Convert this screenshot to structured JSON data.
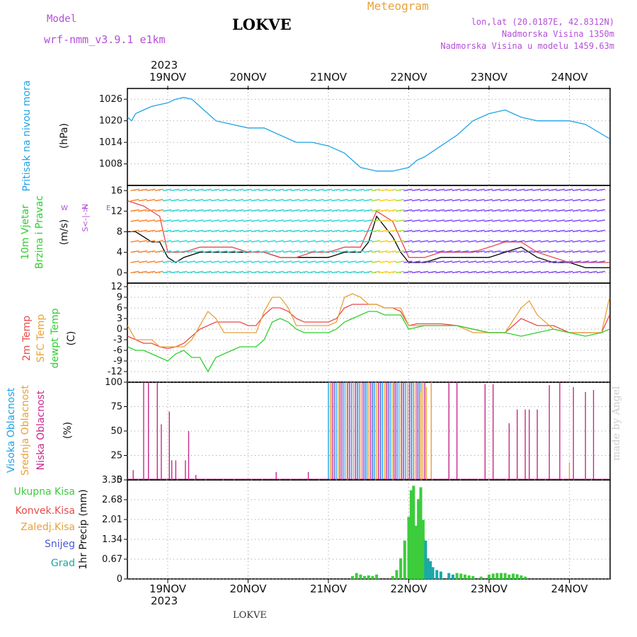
{
  "header": {
    "model_label": "Model",
    "model_name": "wrf-nmm_v3.9.1 e1km",
    "location": "LOKVE",
    "meteogram": "Meteogram",
    "lonlat": "lon,lat (20.0187E, 42.8312N)",
    "altitude": "Nadmorska Visina 1350m",
    "model_altitude": "Nadmorska Visina u modelu 1459.63m"
  },
  "year_label": "2023",
  "footer_location": "LOKVE",
  "watermark": "made by Angel",
  "colors": {
    "pressure": "#1fa3e6",
    "temp2m": "#e94a4a",
    "sfc": "#e8a23a",
    "dewpt": "#2fcf2f",
    "purple": "#b44fd6",
    "green_bar": "#3ccc3c",
    "blue_bar": "#4a58d8",
    "teal_bar": "#1aa8a8",
    "cloud_magenta": "#c8288a"
  },
  "chart_data": [
    {
      "type": "line",
      "panel": "pressure",
      "ylabel_series": "Pritisak na nivou mora",
      "unit": "(hPa)",
      "x_categories": [
        "19NOV",
        "20NOV",
        "21NOV",
        "22NOV",
        "23NOV",
        "24NOV"
      ],
      "ylim": [
        1002,
        1029
      ],
      "yticks": [
        1008,
        1014,
        1020,
        1026
      ],
      "grid": true,
      "series": [
        {
          "name": "Pritisak na nivou mora",
          "x": [
            -0.5,
            -0.45,
            -0.4,
            -0.3,
            -0.2,
            -0.1,
            0,
            0.1,
            0.2,
            0.3,
            0.4,
            0.5,
            0.6,
            0.8,
            1.0,
            1.2,
            1.4,
            1.6,
            1.8,
            2.0,
            2.2,
            2.4,
            2.6,
            2.8,
            3.0,
            3.1,
            3.2,
            3.4,
            3.6,
            3.8,
            4.0,
            4.2,
            4.4,
            4.6,
            4.8,
            5.0,
            5.2,
            5.5
          ],
          "y": [
            1021,
            1020,
            1022,
            1023,
            1024,
            1024.5,
            1025,
            1026,
            1026.5,
            1026,
            1024,
            1022,
            1020,
            1019,
            1018,
            1018,
            1016,
            1014,
            1014,
            1013,
            1011,
            1007,
            1006,
            1006,
            1007,
            1009,
            1010,
            1013,
            1016,
            1020,
            1022,
            1023,
            1021,
            1020,
            1020,
            1020,
            1019,
            1015
          ]
        }
      ]
    },
    {
      "type": "line",
      "panel": "wind",
      "ylabel_series": [
        "10m Vjetar",
        "Brzina i Pravac"
      ],
      "unit": "(m/s)",
      "direction_legend": [
        "N",
        "<-|->",
        "S",
        "W",
        "E"
      ],
      "ylim": [
        -2,
        17
      ],
      "yticks": [
        0,
        4,
        8,
        12,
        16
      ],
      "grid": true,
      "series": [
        {
          "name": "speed",
          "x": [
            -0.5,
            -0.4,
            -0.3,
            -0.2,
            -0.1,
            0,
            0.1,
            0.2,
            0.4,
            0.6,
            0.8,
            1.0,
            1.2,
            1.4,
            1.6,
            1.8,
            2.0,
            2.2,
            2.4,
            2.5,
            2.6,
            2.7,
            2.8,
            2.9,
            3.0,
            3.2,
            3.4,
            3.6,
            3.8,
            4.0,
            4.2,
            4.4,
            4.6,
            4.8,
            5.0,
            5.2,
            5.4,
            5.5
          ],
          "y": [
            8,
            8,
            7,
            6,
            6,
            3,
            2,
            3,
            4,
            4,
            4,
            4,
            4,
            3,
            3,
            3,
            3,
            4,
            4,
            6,
            11,
            9,
            7,
            4,
            2,
            2,
            3,
            3,
            3,
            3,
            4,
            5,
            3,
            2,
            2,
            1,
            1,
            1
          ]
        },
        {
          "name": "gust",
          "x": [
            -0.5,
            -0.3,
            -0.1,
            0,
            0.2,
            0.4,
            0.6,
            0.8,
            1.0,
            1.2,
            1.4,
            1.6,
            1.8,
            2.0,
            2.2,
            2.4,
            2.6,
            2.8,
            3.0,
            3.2,
            3.4,
            3.6,
            3.8,
            4.0,
            4.2,
            4.4,
            4.6,
            4.8,
            5.0,
            5.5
          ],
          "y": [
            14,
            13,
            11,
            4,
            4,
            5,
            5,
            5,
            4,
            4,
            3,
            3,
            4,
            4,
            5,
            5,
            12,
            10,
            3,
            3,
            4,
            4,
            4,
            5,
            6,
            6,
            4,
            3,
            2,
            2
          ]
        }
      ]
    },
    {
      "type": "line",
      "panel": "temperature",
      "ylabel_series": [
        "2m Temp",
        "SFC Temp",
        "dewpt Temp"
      ],
      "unit": "(C)",
      "ylim": [
        -15,
        13
      ],
      "yticks": [
        -12,
        -9,
        -6,
        -3,
        0,
        3,
        6,
        9,
        12
      ],
      "grid": true,
      "series": [
        {
          "name": "2m Temp",
          "x": [
            -0.5,
            -0.4,
            -0.3,
            -0.2,
            -0.1,
            0,
            0.1,
            0.2,
            0.3,
            0.4,
            0.5,
            0.6,
            0.7,
            0.8,
            0.9,
            1.0,
            1.1,
            1.2,
            1.3,
            1.4,
            1.5,
            1.6,
            1.7,
            1.8,
            1.9,
            2.0,
            2.1,
            2.2,
            2.3,
            2.4,
            2.5,
            2.6,
            2.7,
            2.8,
            2.9,
            3.0,
            3.1,
            3.2,
            3.4,
            3.6,
            3.8,
            4.0,
            4.2,
            4.4,
            4.6,
            4.8,
            5.0,
            5.2,
            5.4,
            5.5
          ],
          "y": [
            -2,
            -3,
            -4,
            -4,
            -5,
            -5.5,
            -5,
            -4,
            -2,
            0,
            1,
            2,
            2,
            2,
            2,
            1,
            1,
            4,
            6,
            6,
            5,
            3,
            2,
            2,
            2,
            2,
            3,
            6,
            7,
            7,
            7,
            7,
            6,
            6,
            5,
            1,
            1.5,
            1.5,
            1.5,
            1,
            0,
            -1,
            -1,
            3,
            1,
            1,
            -1,
            -1,
            -1,
            4
          ]
        },
        {
          "name": "SFC Temp",
          "x": [
            -0.5,
            -0.4,
            -0.3,
            -0.2,
            -0.1,
            0,
            0.1,
            0.2,
            0.3,
            0.4,
            0.5,
            0.6,
            0.7,
            0.8,
            0.9,
            1.0,
            1.1,
            1.2,
            1.3,
            1.4,
            1.5,
            1.6,
            1.7,
            1.8,
            1.9,
            2.0,
            2.1,
            2.2,
            2.3,
            2.4,
            2.5,
            2.6,
            2.7,
            2.8,
            2.9,
            3.0,
            3.1,
            3.2,
            3.4,
            3.6,
            3.8,
            4.0,
            4.2,
            4.4,
            4.5,
            4.6,
            4.8,
            5.0,
            5.2,
            5.4,
            5.5
          ],
          "y": [
            1,
            -3,
            -3,
            -3,
            -5,
            -5,
            -5,
            -5,
            -3,
            1,
            5,
            3,
            -1,
            -1,
            -1,
            -1,
            -1,
            5,
            9,
            9,
            6,
            1,
            1,
            1,
            1,
            1,
            2,
            9,
            10,
            9,
            7,
            7,
            6,
            6,
            6,
            1,
            1,
            1,
            1,
            1,
            -1,
            -1,
            -1,
            6,
            8,
            4,
            0,
            -1,
            -1,
            -1,
            9
          ]
        },
        {
          "name": "dewpt Temp",
          "x": [
            -0.5,
            -0.4,
            -0.3,
            -0.2,
            -0.1,
            0,
            0.1,
            0.2,
            0.3,
            0.4,
            0.5,
            0.6,
            0.7,
            0.8,
            0.9,
            1.0,
            1.1,
            1.2,
            1.3,
            1.4,
            1.5,
            1.6,
            1.7,
            1.8,
            1.9,
            2.0,
            2.1,
            2.2,
            2.3,
            2.4,
            2.5,
            2.6,
            2.7,
            2.8,
            2.9,
            3.0,
            3.2,
            3.4,
            3.6,
            3.8,
            4.0,
            4.2,
            4.4,
            4.6,
            4.8,
            5.0,
            5.2,
            5.4,
            5.5
          ],
          "y": [
            -5,
            -6,
            -6,
            -7,
            -8,
            -9,
            -7,
            -6,
            -8,
            -8,
            -12,
            -8,
            -7,
            -6,
            -5,
            -5,
            -5,
            -3,
            2,
            3,
            2,
            0,
            -1,
            -1,
            -1,
            -1,
            0,
            2,
            3,
            4,
            5,
            5,
            4,
            4,
            4,
            0,
            1,
            1,
            1,
            0,
            -1,
            -1,
            -2,
            -1,
            0,
            -1,
            -2,
            -1,
            0
          ]
        }
      ]
    },
    {
      "type": "bar",
      "panel": "clouds",
      "ylabel_series": [
        "Visoka Oblacnost",
        "Srednja Oblacnost",
        "Niska Oblacnost"
      ],
      "unit": "(%)",
      "ylim": [
        0,
        100
      ],
      "yticks": [
        0,
        25,
        50,
        75,
        100
      ],
      "grid": true,
      "series": [
        {
          "name": "Niska Oblacnost",
          "x": [
            -0.43,
            -0.3,
            -0.24,
            -0.13,
            -0.08,
            0.02,
            0.05,
            0.1,
            0.22,
            0.26,
            0.35,
            1.35,
            1.75,
            3.2,
            3.5,
            3.6,
            3.95,
            4.05,
            4.25,
            4.35,
            4.45,
            4.5,
            4.6,
            4.75,
            4.88,
            5.05,
            5.2,
            5.3
          ],
          "y": [
            10,
            100,
            100,
            100,
            57,
            70,
            20,
            20,
            20,
            50,
            5,
            8,
            8,
            100,
            100,
            100,
            98,
            98,
            58,
            72,
            72,
            72,
            72,
            97,
            100,
            95,
            90,
            92
          ]
        },
        {
          "name": "Srednja Oblacnost",
          "x": [
            3.15,
            3.22,
            3.28,
            5.0
          ],
          "y": [
            90,
            95,
            100,
            18
          ]
        },
        {
          "name": "Visoka Oblacnost",
          "x": [],
          "y": []
        }
      ],
      "overcast_span": [
        2.0,
        3.2
      ]
    },
    {
      "type": "bar",
      "panel": "precip",
      "ylabel_series": [
        "Ukupna Kisa",
        "Konvek.Kisa",
        "Zaledj.Kisa",
        "Snijeg",
        "Grad"
      ],
      "unit": "1hr Precip (mm)",
      "ylim": [
        0,
        3.35
      ],
      "yticks": [
        0,
        0.67,
        1.34,
        2.01,
        2.68,
        3.35
      ],
      "grid": true,
      "series": [
        {
          "name": "Ukupna Kisa",
          "x": [
            2.3,
            2.35,
            2.4,
            2.45,
            2.5,
            2.55,
            2.6,
            2.8,
            2.85,
            2.9,
            2.95,
            3.0,
            3.03,
            3.06,
            3.09,
            3.12,
            3.15,
            3.18,
            3.21,
            3.24,
            3.27,
            3.3,
            3.35,
            3.4,
            3.5,
            3.55,
            3.6,
            3.65,
            3.7,
            3.75,
            3.8,
            3.9,
            4.0,
            4.05,
            4.1,
            4.15,
            4.2,
            4.25,
            4.3,
            4.35,
            4.4,
            4.45
          ],
          "y": [
            0.1,
            0.2,
            0.15,
            0.1,
            0.12,
            0.1,
            0.15,
            0.1,
            0.3,
            0.7,
            1.3,
            2.1,
            3.0,
            3.15,
            1.8,
            2.7,
            3.1,
            2.0,
            1.3,
            0.7,
            0.6,
            0.4,
            0.3,
            0.25,
            0.2,
            0.15,
            0.2,
            0.18,
            0.15,
            0.12,
            0.1,
            0.08,
            0.15,
            0.18,
            0.2,
            0.2,
            0.2,
            0.15,
            0.18,
            0.16,
            0.12,
            0.08
          ]
        }
      ]
    }
  ]
}
